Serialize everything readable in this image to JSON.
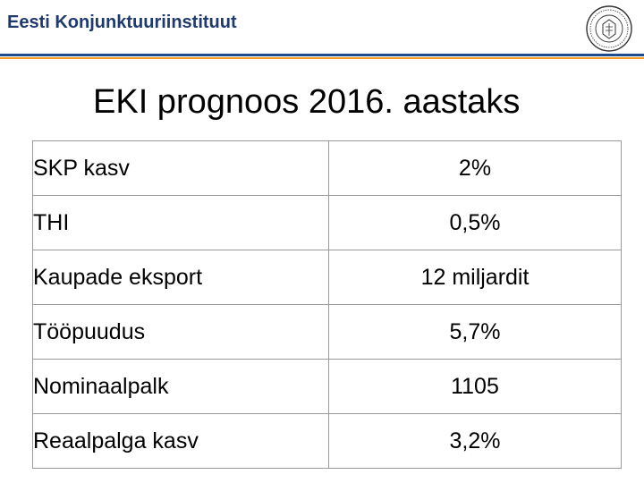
{
  "header": {
    "institute": "Eesti Konjunktuuriinstituut",
    "logo_icon": "seal-icon",
    "accent_blue": "#1f4a8a",
    "accent_orange": "#f39a1e"
  },
  "slide": {
    "title": "EKI prognoos 2016. aastaks"
  },
  "table": {
    "rows": [
      {
        "label": "SKP kasv",
        "value": "2%"
      },
      {
        "label": "THI",
        "value": "0,5%"
      },
      {
        "label": "Kaupade eksport",
        "value": "12 miljardit"
      },
      {
        "label": "Tööpuudus",
        "value": "5,7%"
      },
      {
        "label": "Nominaalpalk",
        "value": "1105"
      },
      {
        "label": "Reaalpalga kasv",
        "value": "3,2%"
      }
    ]
  }
}
